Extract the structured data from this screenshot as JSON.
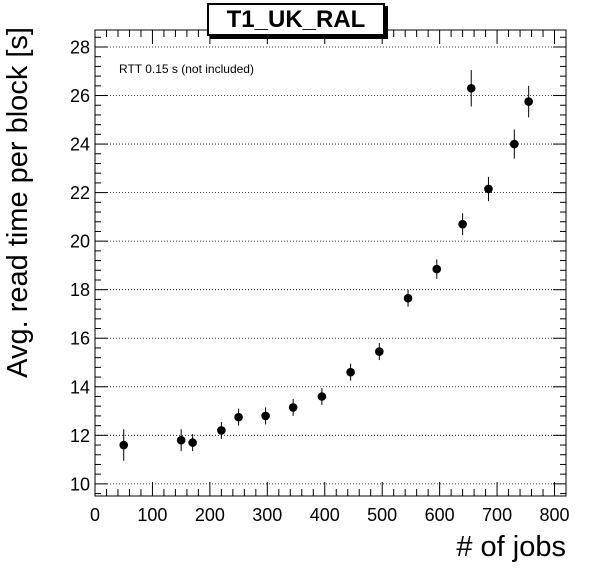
{
  "chart_data": {
    "type": "scatter",
    "title": "T1_UK_RAL",
    "annotation": "RTT 0.15 s (not included)",
    "xlabel": "# of jobs",
    "ylabel": "Avg. read time per block [s]",
    "xlim": [
      0,
      820
    ],
    "ylim": [
      9.5,
      28.7
    ],
    "xticks": [
      0,
      100,
      200,
      300,
      400,
      500,
      600,
      700,
      800
    ],
    "yticks": [
      10,
      12,
      14,
      16,
      18,
      20,
      22,
      24,
      26,
      28
    ],
    "grid": "horizontal dotted",
    "series": [
      {
        "x": [
          50,
          150,
          170,
          220,
          250,
          297,
          345,
          395,
          445,
          495,
          545,
          595,
          640,
          655,
          685,
          730,
          755
        ],
        "y": [
          11.6,
          11.8,
          11.7,
          12.2,
          12.75,
          12.8,
          13.15,
          13.6,
          14.6,
          15.45,
          17.65,
          18.85,
          20.7,
          26.3,
          22.15,
          24.0,
          25.75
        ],
        "yerr": [
          0.65,
          0.45,
          0.35,
          0.35,
          0.35,
          0.35,
          0.35,
          0.35,
          0.35,
          0.35,
          0.35,
          0.4,
          0.45,
          0.75,
          0.5,
          0.6,
          0.65
        ]
      }
    ]
  }
}
